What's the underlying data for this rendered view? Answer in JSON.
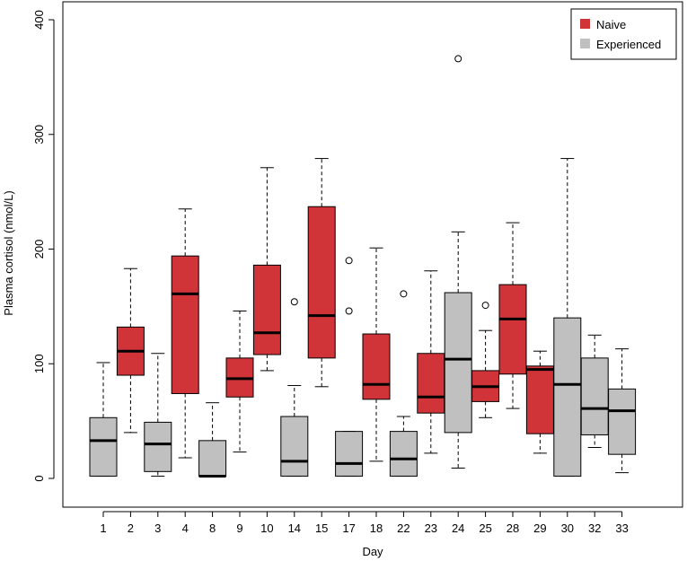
{
  "chart_data": {
    "type": "boxplot",
    "title": "",
    "xlabel": "Day",
    "ylabel": "Plasma cortisol (nmol/L)",
    "ylim": [
      0,
      400
    ],
    "yticks": [
      0,
      100,
      200,
      300,
      400
    ],
    "legend": {
      "position": "top-right",
      "entries": [
        {
          "label": "Naive",
          "color": "#d13438"
        },
        {
          "label": "Experienced",
          "color": "#c0c0c0"
        }
      ]
    },
    "series": [
      {
        "day": "1",
        "group": "Experienced",
        "min": 2,
        "q1": 2,
        "median": 33,
        "q3": 53,
        "max": 101,
        "outliers": []
      },
      {
        "day": "2",
        "group": "Naive",
        "min": 40,
        "q1": 90,
        "median": 111,
        "q3": 132,
        "max": 183,
        "outliers": []
      },
      {
        "day": "3",
        "group": "Experienced",
        "min": 2,
        "q1": 6,
        "median": 30,
        "q3": 49,
        "max": 109,
        "outliers": []
      },
      {
        "day": "4",
        "group": "Naive",
        "min": 18,
        "q1": 74,
        "median": 161,
        "q3": 194,
        "max": 235,
        "outliers": []
      },
      {
        "day": "8",
        "group": "Experienced",
        "min": 2,
        "q1": 2,
        "median": 2,
        "q3": 33,
        "max": 66,
        "outliers": []
      },
      {
        "day": "9",
        "group": "Naive",
        "min": 23,
        "q1": 71,
        "median": 87,
        "q3": 105,
        "max": 146,
        "outliers": []
      },
      {
        "day": "10",
        "group": "Naive",
        "min": 94,
        "q1": 108,
        "median": 127,
        "q3": 186,
        "max": 271,
        "outliers": []
      },
      {
        "day": "14",
        "group": "Experienced",
        "min": 2,
        "q1": 2,
        "median": 15,
        "q3": 54,
        "max": 81,
        "outliers": [
          154
        ]
      },
      {
        "day": "15",
        "group": "Naive",
        "min": 80,
        "q1": 105,
        "median": 142,
        "q3": 237,
        "max": 279,
        "outliers": []
      },
      {
        "day": "17",
        "group": "Experienced",
        "min": 2,
        "q1": 2,
        "median": 13,
        "q3": 41,
        "max": 41,
        "outliers": [
          146,
          190
        ]
      },
      {
        "day": "18",
        "group": "Naive",
        "min": 15,
        "q1": 69,
        "median": 82,
        "q3": 126,
        "max": 201,
        "outliers": []
      },
      {
        "day": "22",
        "group": "Experienced",
        "min": 2,
        "q1": 2,
        "median": 17,
        "q3": 41,
        "max": 54,
        "outliers": [
          161
        ]
      },
      {
        "day": "23",
        "group": "Naive",
        "min": 22,
        "q1": 57,
        "median": 71,
        "q3": 109,
        "max": 181,
        "outliers": []
      },
      {
        "day": "24",
        "group": "Experienced",
        "min": 9,
        "q1": 40,
        "median": 104,
        "q3": 162,
        "max": 215,
        "outliers": [
          366
        ]
      },
      {
        "day": "25",
        "group": "Naive",
        "min": 53,
        "q1": 67,
        "median": 80,
        "q3": 94,
        "max": 129,
        "outliers": [
          151
        ]
      },
      {
        "day": "28",
        "group": "Naive",
        "min": 61,
        "q1": 91,
        "median": 139,
        "q3": 169,
        "max": 223,
        "outliers": []
      },
      {
        "day": "29",
        "group": "Naive",
        "min": 22,
        "q1": 39,
        "median": 95,
        "q3": 98,
        "max": 111,
        "outliers": []
      },
      {
        "day": "30",
        "group": "Experienced",
        "min": 2,
        "q1": 2,
        "median": 82,
        "q3": 140,
        "max": 279,
        "outliers": []
      },
      {
        "day": "32",
        "group": "Experienced",
        "min": 27,
        "q1": 38,
        "median": 61,
        "q3": 105,
        "max": 125,
        "outliers": []
      },
      {
        "day": "33",
        "group": "Experienced",
        "min": 5,
        "q1": 21,
        "median": 59,
        "q3": 78,
        "max": 113,
        "outliers": []
      }
    ]
  }
}
